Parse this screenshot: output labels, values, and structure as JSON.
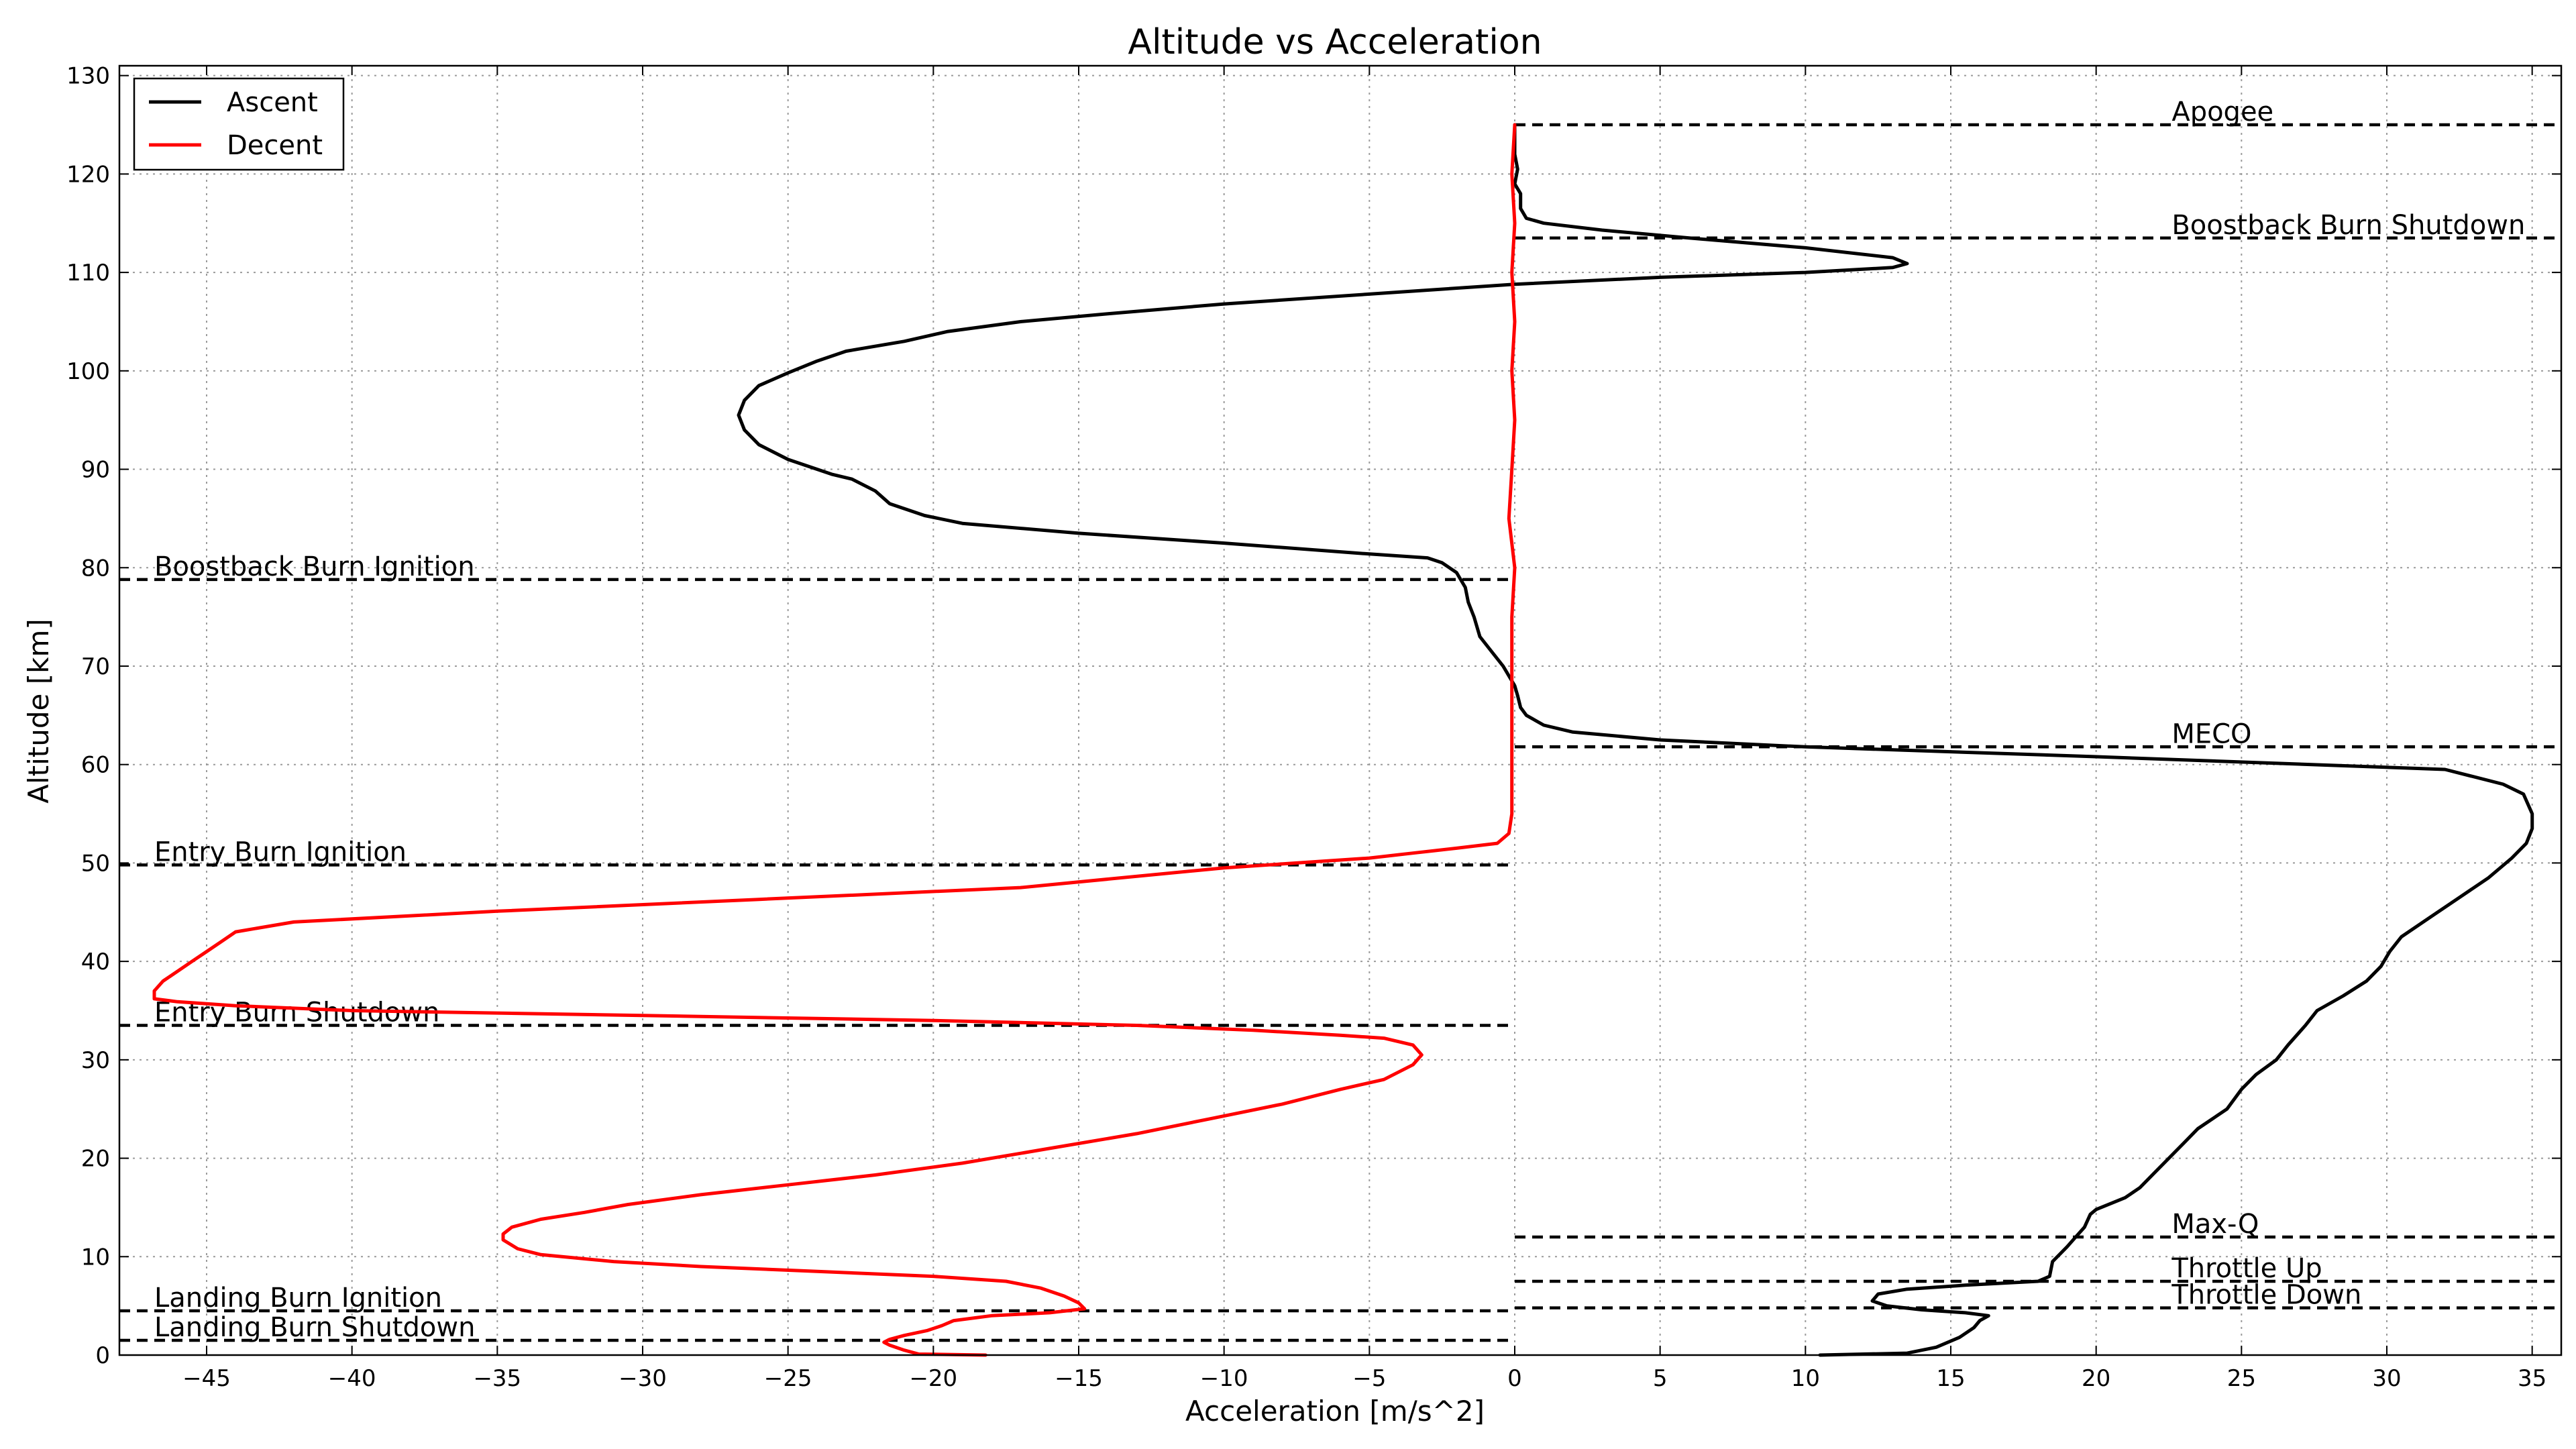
{
  "chart_data": {
    "type": "line",
    "title": "Altitude vs Acceleration",
    "xlabel": "Acceleration [m/s^2]",
    "ylabel": "Altitude [km]",
    "xlim": [
      -48,
      36
    ],
    "ylim": [
      0,
      131
    ],
    "xticks": [
      -45,
      -40,
      -35,
      -30,
      -25,
      -20,
      -15,
      -10,
      -5,
      0,
      5,
      10,
      15,
      20,
      25,
      30,
      35
    ],
    "xtick_labels": [
      "−45",
      "−40",
      "−35",
      "−30",
      "−25",
      "−20",
      "−15",
      "−10",
      "−5",
      "0",
      "5",
      "10",
      "15",
      "20",
      "25",
      "30",
      "35"
    ],
    "yticks": [
      0,
      10,
      20,
      30,
      40,
      50,
      60,
      70,
      80,
      90,
      100,
      110,
      120,
      130
    ],
    "ytick_labels": [
      "0",
      "10",
      "20",
      "30",
      "40",
      "50",
      "60",
      "70",
      "80",
      "90",
      "100",
      "110",
      "120",
      "130"
    ],
    "grid": true,
    "legend_position": "top-left",
    "series": [
      {
        "name": "Ascent",
        "color": "#000000",
        "points": [
          [
            10.5,
            0.0
          ],
          [
            13.5,
            0.2
          ],
          [
            14.5,
            0.8
          ],
          [
            15.3,
            1.8
          ],
          [
            15.8,
            2.8
          ],
          [
            16.0,
            3.5
          ],
          [
            16.3,
            4.0
          ],
          [
            15.5,
            4.3
          ],
          [
            14.0,
            4.6
          ],
          [
            12.8,
            5.0
          ],
          [
            12.3,
            5.5
          ],
          [
            12.5,
            6.2
          ],
          [
            13.5,
            6.7
          ],
          [
            15.5,
            7.1
          ],
          [
            18.0,
            7.5
          ],
          [
            18.4,
            8.0
          ],
          [
            18.5,
            9.5
          ],
          [
            19.0,
            11.0
          ],
          [
            19.3,
            12.0
          ],
          [
            19.6,
            13.0
          ],
          [
            19.8,
            14.3
          ],
          [
            20.0,
            14.8
          ],
          [
            21.0,
            16.0
          ],
          [
            21.5,
            17.0
          ],
          [
            22.0,
            18.5
          ],
          [
            22.5,
            20.0
          ],
          [
            23.0,
            21.5
          ],
          [
            23.5,
            23.0
          ],
          [
            24.5,
            25.0
          ],
          [
            25.0,
            27.0
          ],
          [
            25.5,
            28.5
          ],
          [
            26.2,
            30.0
          ],
          [
            26.6,
            31.5
          ],
          [
            27.2,
            33.5
          ],
          [
            27.6,
            35.0
          ],
          [
            28.5,
            36.5
          ],
          [
            29.3,
            38.0
          ],
          [
            29.8,
            39.5
          ],
          [
            30.1,
            41.0
          ],
          [
            30.5,
            42.5
          ],
          [
            31.5,
            44.5
          ],
          [
            32.5,
            46.5
          ],
          [
            33.5,
            48.5
          ],
          [
            34.3,
            50.5
          ],
          [
            34.8,
            52.0
          ],
          [
            35.0,
            53.5
          ],
          [
            35.0,
            55.0
          ],
          [
            34.7,
            57.0
          ],
          [
            34.0,
            58.0
          ],
          [
            32.0,
            59.5
          ],
          [
            20.0,
            60.8
          ],
          [
            10.0,
            61.8
          ],
          [
            5.0,
            62.5
          ],
          [
            2.0,
            63.3
          ],
          [
            1.0,
            64.0
          ],
          [
            0.4,
            65.0
          ],
          [
            0.2,
            65.8
          ],
          [
            0.1,
            67.0
          ],
          [
            0.0,
            68.0
          ],
          [
            -0.4,
            70.0
          ],
          [
            -0.8,
            71.5
          ],
          [
            -1.2,
            73.0
          ],
          [
            -1.4,
            75.0
          ],
          [
            -1.6,
            76.5
          ],
          [
            -1.7,
            78.0
          ],
          [
            -2.0,
            79.5
          ],
          [
            -2.5,
            80.5
          ],
          [
            -3.0,
            81.0
          ],
          [
            -5.5,
            81.5
          ],
          [
            -10.0,
            82.5
          ],
          [
            -15.0,
            83.5
          ],
          [
            -19.0,
            84.5
          ],
          [
            -20.3,
            85.3
          ],
          [
            -21.5,
            86.5
          ],
          [
            -22.0,
            87.8
          ],
          [
            -22.8,
            89.0
          ],
          [
            -23.5,
            89.5
          ],
          [
            -25.0,
            91.0
          ],
          [
            -26.0,
            92.5
          ],
          [
            -26.5,
            94.0
          ],
          [
            -26.7,
            95.5
          ],
          [
            -26.5,
            97.0
          ],
          [
            -26.0,
            98.5
          ],
          [
            -25.0,
            99.8
          ],
          [
            -24.0,
            101.0
          ],
          [
            -23.0,
            102.0
          ],
          [
            -21.0,
            103.0
          ],
          [
            -19.5,
            104.0
          ],
          [
            -17.0,
            105.0
          ],
          [
            -14.0,
            105.8
          ],
          [
            -10.0,
            106.8
          ],
          [
            -5.0,
            107.8
          ],
          [
            0.0,
            108.8
          ],
          [
            5.0,
            109.5
          ],
          [
            10.0,
            110.0
          ],
          [
            13.0,
            110.5
          ],
          [
            13.5,
            110.9
          ],
          [
            13.0,
            111.5
          ],
          [
            10.0,
            112.5
          ],
          [
            6.0,
            113.5
          ],
          [
            3.0,
            114.3
          ],
          [
            1.0,
            115.0
          ],
          [
            0.4,
            115.5
          ],
          [
            0.2,
            116.5
          ],
          [
            0.2,
            118.0
          ],
          [
            0.0,
            119.0
          ],
          [
            0.1,
            120.5
          ],
          [
            0.0,
            122.0
          ],
          [
            0.0,
            125.0
          ]
        ]
      },
      {
        "name": "Decent",
        "color": "#ff0000",
        "points": [
          [
            0.0,
            125.0
          ],
          [
            -0.1,
            120.0
          ],
          [
            0.0,
            115.0
          ],
          [
            -0.1,
            110.0
          ],
          [
            0.0,
            105.0
          ],
          [
            -0.1,
            100.0
          ],
          [
            0.0,
            95.0
          ],
          [
            -0.1,
            90.0
          ],
          [
            -0.2,
            85.0
          ],
          [
            0.0,
            80.0
          ],
          [
            -0.1,
            75.0
          ],
          [
            -0.1,
            70.0
          ],
          [
            -0.1,
            65.0
          ],
          [
            -0.1,
            60.0
          ],
          [
            -0.1,
            55.0
          ],
          [
            -0.2,
            53.0
          ],
          [
            -0.6,
            52.0
          ],
          [
            -2.0,
            51.5
          ],
          [
            -3.5,
            51.0
          ],
          [
            -5.0,
            50.5
          ],
          [
            -10.0,
            49.5
          ],
          [
            -17.0,
            47.5
          ],
          [
            -26.0,
            46.3
          ],
          [
            -35.0,
            45.1
          ],
          [
            -42.0,
            44.0
          ],
          [
            -44.0,
            43.0
          ],
          [
            -44.5,
            42.0
          ],
          [
            -45.0,
            41.0
          ],
          [
            -45.5,
            40.0
          ],
          [
            -46.0,
            39.0
          ],
          [
            -46.5,
            38.0
          ],
          [
            -46.8,
            37.0
          ],
          [
            -46.8,
            36.2
          ],
          [
            -46.0,
            35.9
          ],
          [
            -44.0,
            35.5
          ],
          [
            -40.0,
            35.0
          ],
          [
            -30.0,
            34.5
          ],
          [
            -20.0,
            34.0
          ],
          [
            -13.0,
            33.5
          ],
          [
            -9.0,
            33.0
          ],
          [
            -6.0,
            32.5
          ],
          [
            -4.5,
            32.2
          ],
          [
            -3.5,
            31.5
          ],
          [
            -3.2,
            30.5
          ],
          [
            -3.5,
            29.5
          ],
          [
            -4.5,
            28.0
          ],
          [
            -6.0,
            27.0
          ],
          [
            -8.0,
            25.5
          ],
          [
            -10.5,
            24.0
          ],
          [
            -13.0,
            22.5
          ],
          [
            -16.0,
            21.0
          ],
          [
            -19.0,
            19.5
          ],
          [
            -22.0,
            18.3
          ],
          [
            -25.0,
            17.3
          ],
          [
            -28.0,
            16.3
          ],
          [
            -30.5,
            15.3
          ],
          [
            -32.0,
            14.5
          ],
          [
            -33.5,
            13.8
          ],
          [
            -34.5,
            13.0
          ],
          [
            -34.8,
            12.3
          ],
          [
            -34.8,
            11.7
          ],
          [
            -34.3,
            10.8
          ],
          [
            -33.5,
            10.2
          ],
          [
            -31.0,
            9.5
          ],
          [
            -28.0,
            9.0
          ],
          [
            -24.0,
            8.5
          ],
          [
            -20.0,
            8.0
          ],
          [
            -17.5,
            7.5
          ],
          [
            -16.3,
            6.8
          ],
          [
            -15.5,
            6.0
          ],
          [
            -15.0,
            5.3
          ],
          [
            -14.8,
            4.7
          ],
          [
            -16.0,
            4.3
          ],
          [
            -18.0,
            4.0
          ],
          [
            -19.3,
            3.5
          ],
          [
            -19.7,
            3.0
          ],
          [
            -20.2,
            2.5
          ],
          [
            -21.0,
            2.0
          ],
          [
            -21.5,
            1.6
          ],
          [
            -21.7,
            1.3
          ],
          [
            -21.5,
            1.0
          ],
          [
            -21.0,
            0.5
          ],
          [
            -20.5,
            0.1
          ],
          [
            -18.2,
            0.0
          ]
        ]
      }
    ],
    "events": [
      {
        "label": "Apogee",
        "altitude": 125.0,
        "x_range": [
          0,
          36
        ],
        "label_x": 22.6
      },
      {
        "label": "Boostback Burn Shutdown",
        "altitude": 113.5,
        "x_range": [
          0,
          36
        ],
        "label_x": 22.6
      },
      {
        "label": "MECO",
        "altitude": 61.8,
        "x_range": [
          0,
          36
        ],
        "label_x": 22.6
      },
      {
        "label": "Max-Q",
        "altitude": 12.0,
        "x_range": [
          0,
          36
        ],
        "label_x": 22.6
      },
      {
        "label": "Throttle Up",
        "altitude": 7.5,
        "x_range": [
          0,
          36
        ],
        "label_x": 22.6
      },
      {
        "label": "Throttle Down",
        "altitude": 4.8,
        "x_range": [
          0,
          36
        ],
        "label_x": 22.6
      },
      {
        "label": "Boostback Burn Ignition",
        "altitude": 78.8,
        "x_range": [
          -48,
          0
        ],
        "label_x": -46.8
      },
      {
        "label": "Entry Burn Ignition",
        "altitude": 49.8,
        "x_range": [
          -48,
          0
        ],
        "label_x": -46.8
      },
      {
        "label": "Entry Burn Shutdown",
        "altitude": 33.5,
        "x_range": [
          -48,
          0
        ],
        "label_x": -46.8
      },
      {
        "label": "Landing Burn Ignition",
        "altitude": 4.5,
        "x_range": [
          -48,
          0
        ],
        "label_x": -46.8
      },
      {
        "label": "Landing Burn Shutdown",
        "altitude": 1.5,
        "x_range": [
          -48,
          0
        ],
        "label_x": -46.8
      }
    ]
  }
}
